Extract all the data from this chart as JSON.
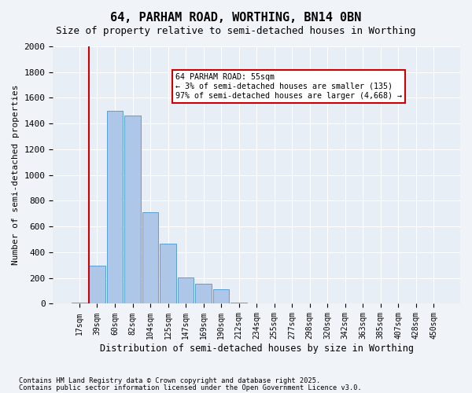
{
  "title": "64, PARHAM ROAD, WORTHING, BN14 0BN",
  "subtitle": "Size of property relative to semi-detached houses in Worthing",
  "xlabel": "Distribution of semi-detached houses by size in Worthing",
  "ylabel": "Number of semi-detached properties",
  "bin_labels": [
    "17sqm",
    "39sqm",
    "60sqm",
    "82sqm",
    "104sqm",
    "125sqm",
    "147sqm",
    "169sqm",
    "190sqm",
    "212sqm",
    "234sqm",
    "255sqm",
    "277sqm",
    "298sqm",
    "320sqm",
    "342sqm",
    "363sqm",
    "385sqm",
    "407sqm",
    "428sqm",
    "450sqm"
  ],
  "bar_values": [
    10,
    295,
    1500,
    1460,
    710,
    470,
    205,
    155,
    110,
    10,
    0,
    0,
    0,
    0,
    0,
    0,
    0,
    0,
    0,
    0,
    0
  ],
  "bar_color": "#aec6e8",
  "bar_edge_color": "#5a9fd4",
  "vline_color": "#cc0000",
  "annotation_title": "64 PARHAM ROAD: 55sqm",
  "annotation_line1": "← 3% of semi-detached houses are smaller (135)",
  "annotation_line2": "97% of semi-detached houses are larger (4,668) →",
  "annotation_box_color": "#cc0000",
  "ylim": [
    0,
    2000
  ],
  "yticks": [
    0,
    200,
    400,
    600,
    800,
    1000,
    1200,
    1400,
    1600,
    1800,
    2000
  ],
  "bg_color": "#e8eef5",
  "fig_bg_color": "#f0f4f8",
  "footer1": "Contains HM Land Registry data © Crown copyright and database right 2025.",
  "footer2": "Contains public sector information licensed under the Open Government Licence v3.0."
}
